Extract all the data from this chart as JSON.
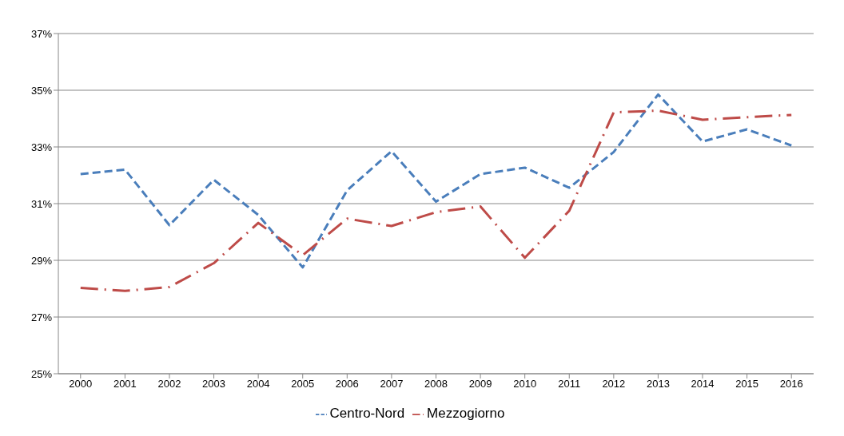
{
  "chart_data": {
    "type": "line",
    "categories": [
      "2000",
      "2001",
      "2002",
      "2003",
      "2004",
      "2005",
      "2006",
      "2007",
      "2008",
      "2009",
      "2010",
      "2011",
      "2012",
      "2013",
      "2014",
      "2015",
      "2016"
    ],
    "series": [
      {
        "name": "Centro-Nord",
        "color": "#4a7ebb",
        "line_style": "dashed",
        "values": [
          32.04,
          32.2,
          30.24,
          31.84,
          30.6,
          28.75,
          31.47,
          32.85,
          31.07,
          32.04,
          32.27,
          31.56,
          32.82,
          34.85,
          33.19,
          33.62,
          33.05
        ]
      },
      {
        "name": "Mezzogiorno",
        "color": "#be4b48",
        "line_style": "dashed",
        "values": [
          28.03,
          27.92,
          28.06,
          28.9,
          30.32,
          29.18,
          30.47,
          30.21,
          30.7,
          30.9,
          29.09,
          30.75,
          34.22,
          34.28,
          33.96,
          34.05,
          34.13
        ]
      }
    ],
    "ylim": [
      25,
      37
    ],
    "yticks": [
      {
        "value": 25,
        "label": "25%"
      },
      {
        "value": 27,
        "label": "27%"
      },
      {
        "value": 29,
        "label": "29%"
      },
      {
        "value": 31,
        "label": "31%"
      },
      {
        "value": 33,
        "label": "33%"
      },
      {
        "value": 35,
        "label": "35%"
      },
      {
        "value": 37,
        "label": "37%"
      }
    ],
    "grid": "y",
    "legend": "bottom",
    "marker": "none"
  }
}
